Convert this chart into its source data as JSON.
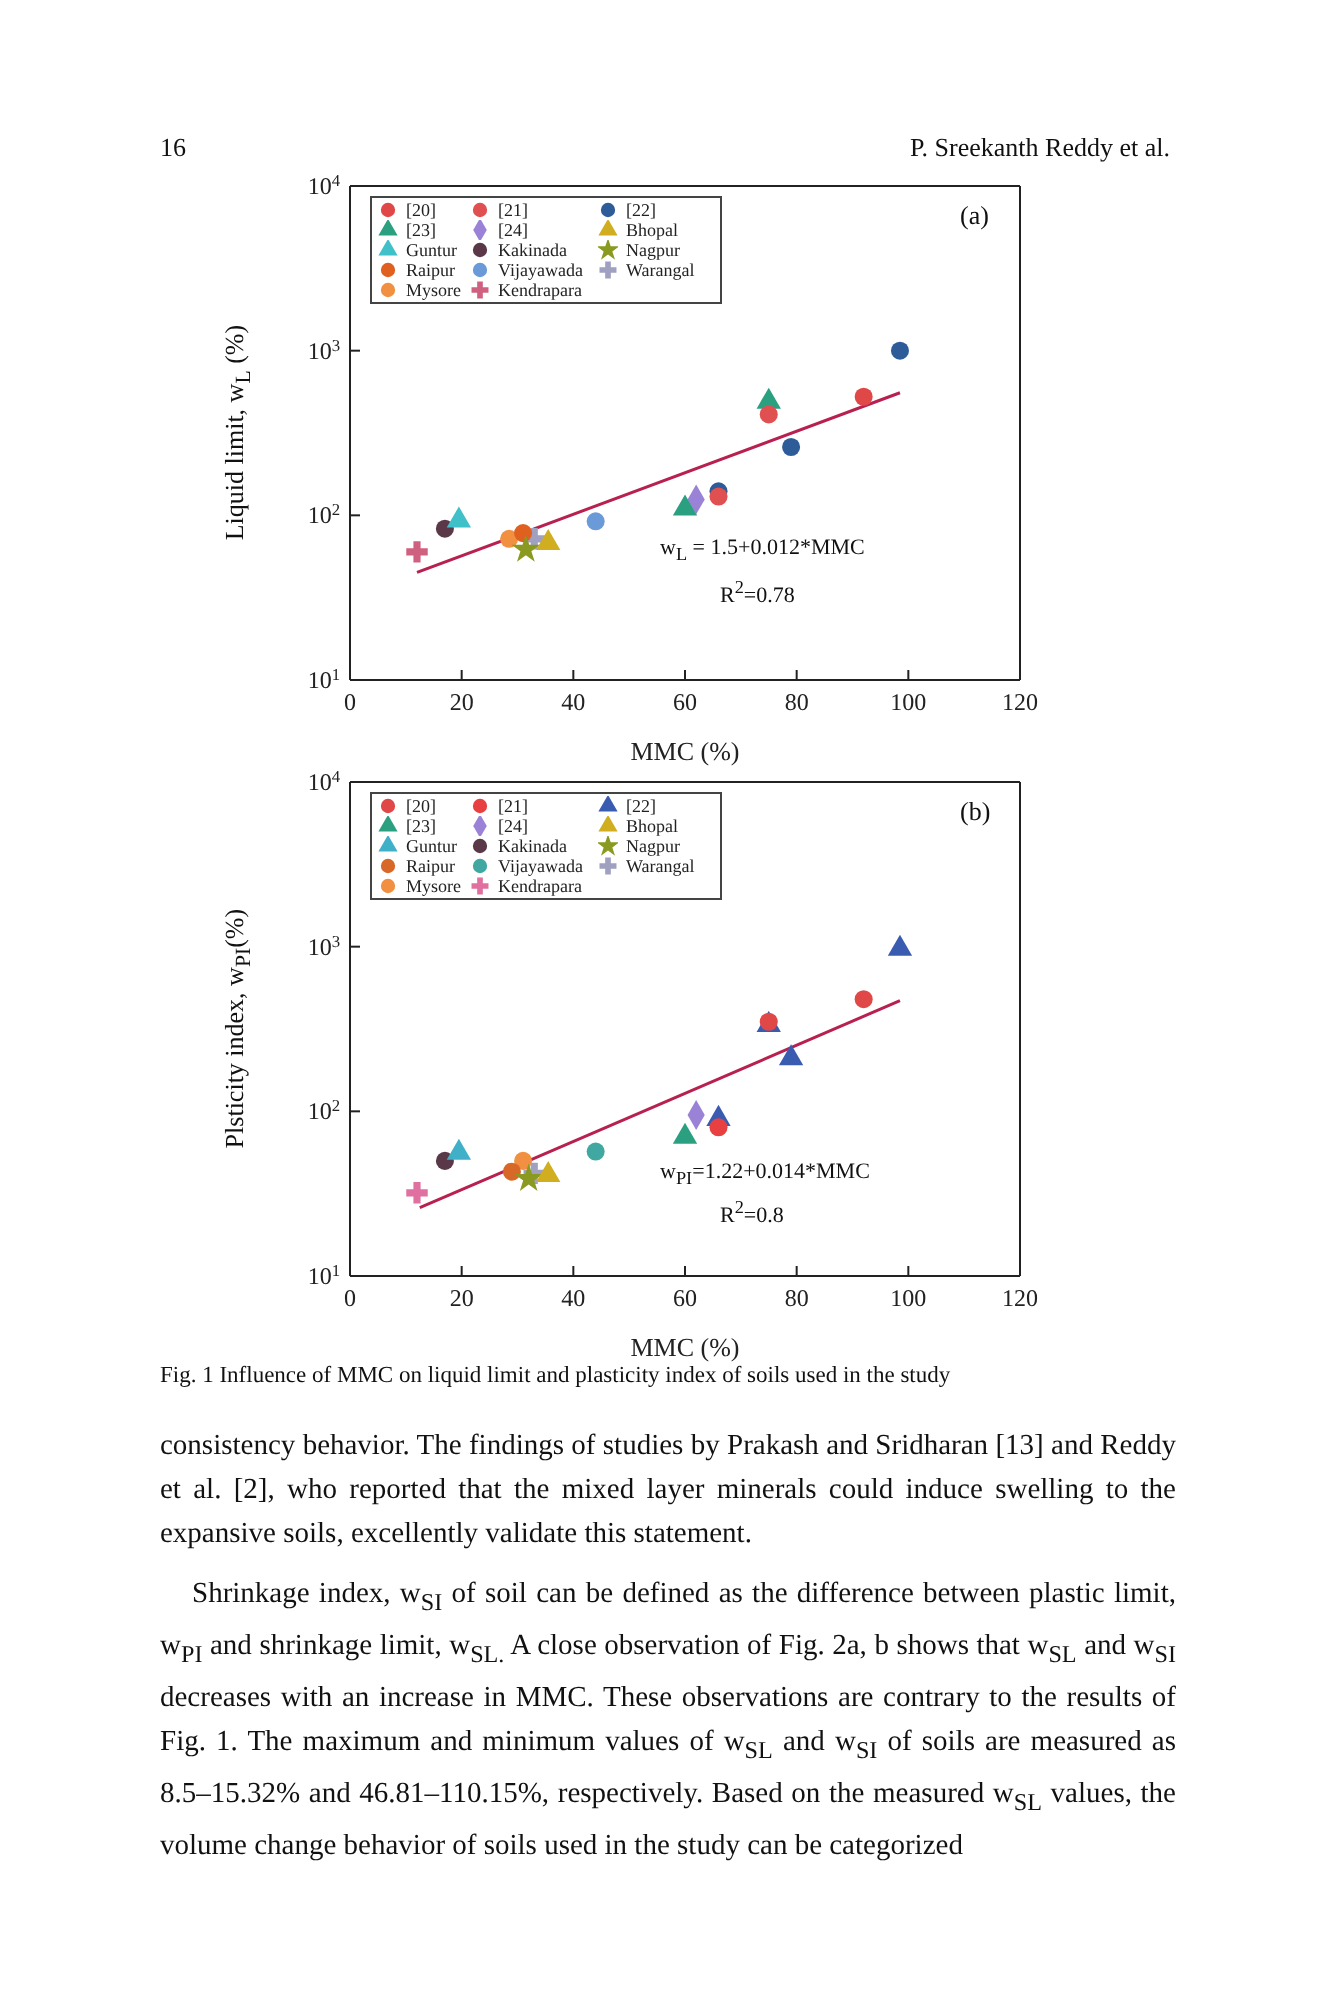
{
  "chart_data": [
    {
      "type": "scatter",
      "xlabel": "MMC (%)",
      "ylabel": "Liquid limit, w$_{L}$ (%)",
      "log": "y",
      "grid": false,
      "legend": "top left",
      "xlim": [
        0,
        120
      ],
      "xticks": [
        0,
        20,
        40,
        60,
        80,
        100,
        120
      ],
      "ylim": [
        10,
        10000
      ],
      "yticks": [
        {
          "value": 10,
          "label": "10$^{1}$"
        },
        {
          "value": 100,
          "label": "10$^{2}$"
        },
        {
          "value": 1000,
          "label": "10$^{3}$"
        },
        {
          "value": 10000,
          "label": "10$^{4}$"
        }
      ],
      "annotations": [
        "(a)",
        "w$_{L}$ = 1.5+0.012*MMC",
        "R$^{2}$=0.78",
        "16",
        "P. Sreekanth Reddy et al."
      ],
      "series": [
        {
          "name": "[20]",
          "color": "#e04848",
          "marker": "circle",
          "x": [
            92
          ],
          "values": [
            525
          ]
        },
        {
          "name": "[21]",
          "color": "#e05050",
          "marker": "circle",
          "x": [
            75,
            66
          ],
          "values": [
            410,
            130
          ]
        },
        {
          "name": "[22]",
          "color": "#2e5c98",
          "marker": "circle",
          "x": [
            98.5,
            79,
            66
          ],
          "values": [
            1000,
            260,
            140
          ]
        },
        {
          "name": "[23]",
          "color": "#2aa080",
          "marker": "triangle",
          "x": [
            75,
            60
          ],
          "values": [
            490,
            110
          ]
        },
        {
          "name": "[24]",
          "color": "#9a82d6",
          "marker": "diamond",
          "x": [
            62
          ],
          "values": [
            125
          ]
        },
        {
          "name": "Bhopal",
          "color": "#d0ae20",
          "marker": "triangle",
          "x": [
            35.5
          ],
          "values": [
            68
          ]
        },
        {
          "name": "Guntur",
          "color": "#40c0c8",
          "marker": "triangle",
          "x": [
            19.5
          ],
          "values": [
            93
          ]
        },
        {
          "name": "Kakinada",
          "color": "#5a3848",
          "marker": "circle",
          "x": [
            17
          ],
          "values": [
            83
          ]
        },
        {
          "name": "Nagpur",
          "color": "#8a9a20",
          "marker": "star",
          "x": [
            31.5
          ],
          "values": [
            62
          ]
        },
        {
          "name": "Raipur",
          "color": "#e06020",
          "marker": "circle",
          "x": [
            31
          ],
          "values": [
            78
          ]
        },
        {
          "name": "Vijayawada",
          "color": "#6a9ad8",
          "marker": "circle",
          "x": [
            44
          ],
          "values": [
            92
          ]
        },
        {
          "name": "Warangal",
          "color": "#a0a0c0",
          "marker": "cross",
          "x": [
            33
          ],
          "values": [
            72
          ]
        },
        {
          "name": "Mysore",
          "color": "#f09040",
          "marker": "circle",
          "x": [
            28.5
          ],
          "values": [
            72
          ]
        },
        {
          "name": "Kendrapara",
          "color": "#d06080",
          "marker": "cross",
          "x": [
            12
          ],
          "values": [
            60
          ]
        },
        {
          "type": "line",
          "color": "#b82050",
          "x": [
            12,
            98.5
          ],
          "values": [
            45,
            555
          ]
        }
      ]
    },
    {
      "type": "scatter",
      "xlabel": "MMC (%)",
      "ylabel": "Plsticity index, w$_{PI}$(%)",
      "log": "y",
      "grid": false,
      "legend": "top left",
      "xlim": [
        0,
        120
      ],
      "xticks": [
        0,
        20,
        40,
        60,
        80,
        100,
        120
      ],
      "ylim": [
        10,
        10000
      ],
      "yticks": [
        {
          "value": 10,
          "label": "10$^{1}$"
        },
        {
          "value": 100,
          "label": "10$^{2}$"
        },
        {
          "value": 1000,
          "label": "10$^{3}$"
        },
        {
          "value": 10000,
          "label": "10$^{4}$"
        }
      ],
      "annotations": [
        "(b)",
        "w$_{PI}$=1.22+0.014*MMC",
        "R$^{2}$=0.8",
        "Fig. 1 Influence of MMC on liquid limit and plasticity index of soils used in the study",
        "consistency behavior. The findings of studies by Prakash and Sridharan [13] and Reddy et al. [2], who reported that the mixed layer minerals could induce swelling to the expansive soils, excellently validate this statement.",
        "Shrinkage index, w$_{SI}$ of soil can be defined as the difference between plastic limit, w$_{PI}$ and shrinkage limit, w$_{SL.}$ A close observation of Fig. 2a, b shows that w$_{SL}$ and w$_{SI}$ decreases with an increase in MMC. These observations are contrary to the results of Fig. 1. The maximum and minimum values of w$_{SL}$ and w$_{SI}$ of soils are measured as 8.5–15.32% and 46.81–110.15%, respectively. Based on the measured w$_{SL}$ values, the volume change behavior of soils used in the study can be categorized"
      ],
      "series": [
        {
          "name": "[20]",
          "color": "#e04848",
          "marker": "circle",
          "x": [
            92,
            75
          ],
          "values": [
            480,
            350
          ]
        },
        {
          "name": "[21]",
          "color": "#e84040",
          "marker": "circle",
          "x": [
            66
          ],
          "values": [
            80
          ]
        },
        {
          "name": "[22]",
          "color": "#3a5cb0",
          "marker": "triangle",
          "x": [
            98.5,
            79,
            75,
            66
          ],
          "values": [
            970,
            210,
            335,
            90
          ]
        },
        {
          "name": "[23]",
          "color": "#2aa080",
          "marker": "triangle",
          "x": [
            60
          ],
          "values": [
            70
          ]
        },
        {
          "name": "[24]",
          "color": "#9a82d6",
          "marker": "diamond",
          "x": [
            62
          ],
          "values": [
            95
          ]
        },
        {
          "name": "Bhopal",
          "color": "#d0ae20",
          "marker": "triangle",
          "x": [
            35.5
          ],
          "values": [
            41
          ]
        },
        {
          "name": "Guntur",
          "color": "#40b0c8",
          "marker": "triangle",
          "x": [
            19.5
          ],
          "values": [
            56
          ]
        },
        {
          "name": "Kakinada",
          "color": "#5a3848",
          "marker": "circle",
          "x": [
            17
          ],
          "values": [
            50
          ]
        },
        {
          "name": "Nagpur",
          "color": "#8a9a20",
          "marker": "star",
          "x": [
            32
          ],
          "values": [
            39
          ]
        },
        {
          "name": "Raipur",
          "color": "#d86828",
          "marker": "circle",
          "x": [
            29
          ],
          "values": [
            43
          ]
        },
        {
          "name": "Vijayawada",
          "color": "#40a8a0",
          "marker": "circle",
          "x": [
            44
          ],
          "values": [
            57
          ]
        },
        {
          "name": "Warangal",
          "color": "#a0a0c0",
          "marker": "cross",
          "x": [
            33
          ],
          "values": [
            42
          ]
        },
        {
          "name": "Mysore",
          "color": "#f09040",
          "marker": "circle",
          "x": [
            31
          ],
          "values": [
            50
          ]
        },
        {
          "name": "Kendrapara",
          "color": "#e070a0",
          "marker": "cross",
          "x": [
            12
          ],
          "values": [
            32
          ]
        },
        {
          "type": "line",
          "color": "#b82050",
          "x": [
            12.5,
            98.5
          ],
          "values": [
            26,
            470
          ]
        }
      ]
    }
  ]
}
